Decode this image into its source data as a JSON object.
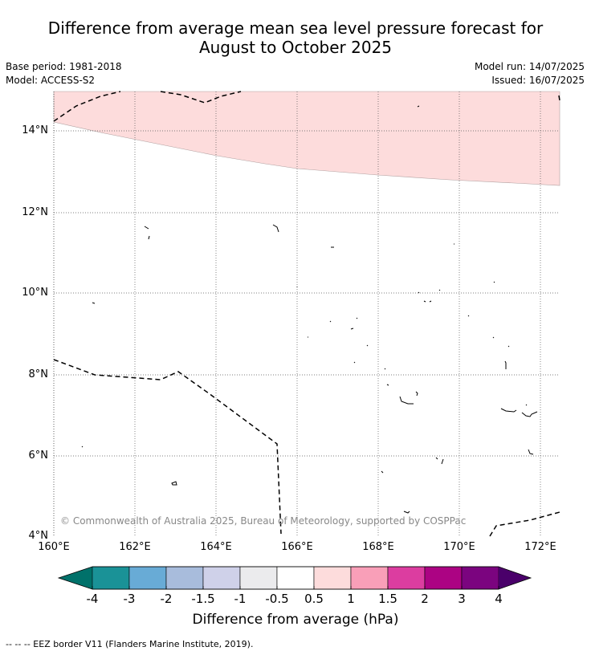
{
  "title": {
    "line1": "Difference from average mean sea level pressure forecast for",
    "line2": "August to October 2025"
  },
  "meta": {
    "base_period": "Base period: 1981-2018",
    "model": "Model: ACCESS-S2",
    "model_run": "Model run: 14/07/2025",
    "issued": "Issued: 16/07/2025"
  },
  "map": {
    "lat_ticks": [
      "14°N",
      "12°N",
      "10°N",
      "8°N",
      "6°N",
      "4°N"
    ],
    "lon_ticks": [
      "160°E",
      "162°E",
      "164°E",
      "166°E",
      "168°E",
      "170°E",
      "172°E"
    ],
    "copyright": "© Commonwealth of Australia 2025, Bureau of Meteorology, supported by COSPPac",
    "shaded_category": "0.5 to 1",
    "shaded_color": "#fddcdc"
  },
  "colorbar": {
    "label": "Difference from average (hPa)",
    "ticks": [
      "-4",
      "-3",
      "-2",
      "-1.5",
      "-1",
      "-0.5",
      "0.5",
      "1",
      "1.5",
      "2",
      "3",
      "4"
    ],
    "colors": [
      "#1a9297",
      "#68abd6",
      "#a8bcdc",
      "#cfd1e9",
      "#ebebed",
      "#ffffff",
      "#fddcdc",
      "#f99fb8",
      "#dc3da0",
      "#ac0383",
      "#7b047f"
    ],
    "low_extend_color": "#00716a",
    "high_extend_color": "#4a006a"
  },
  "footer": {
    "legend": "-- -- -- EEZ border V11 (Flanders Marine Institute, 2019)."
  }
}
